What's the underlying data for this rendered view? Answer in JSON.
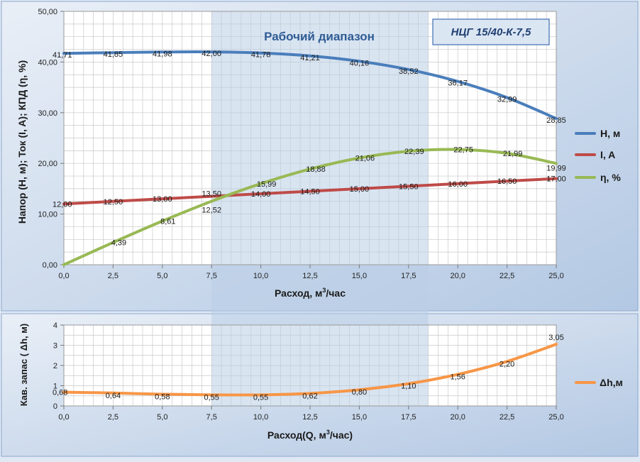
{
  "colors": {
    "head": "#4a7ebb",
    "current": "#be4b48",
    "efficiency": "#98b954",
    "npsh": "#f79646",
    "band": "#b9cde5",
    "plot_bg": "#ffffff",
    "grid": "#c8c8c8",
    "frame_bg": "#c6d6ea"
  },
  "chart_data": [
    {
      "type": "line",
      "title_box": "НЦГ 15/40-К-7,5",
      "band_label": "Рабочий диапазон",
      "band_range": [
        7.5,
        18.5
      ],
      "xlabel_prefix": "Расход, м",
      "xlabel_sup": "3",
      "xlabel_suffix": "/час",
      "ylabel": "Напор (H, м); Ток (I, A); КПД (η, %)",
      "xlim": [
        0,
        25
      ],
      "ylim": [
        0,
        50
      ],
      "x_ticks": [
        "0,0",
        "2,5",
        "5,0",
        "7,5",
        "10,0",
        "12,5",
        "15,0",
        "17,5",
        "20,0",
        "22,5",
        "25,0"
      ],
      "y_ticks": [
        "0,00",
        "10,00",
        "20,00",
        "30,00",
        "40,00",
        "50,00"
      ],
      "grid": true,
      "legend_position": "right",
      "x": [
        0,
        2.5,
        5,
        7.5,
        10,
        12.5,
        15,
        17.5,
        20,
        22.5,
        25
      ],
      "series": [
        {
          "name": "H,  м",
          "values": [
            41.71,
            41.85,
            41.98,
            42.0,
            41.78,
            41.21,
            40.16,
            38.52,
            36.17,
            32.99,
            28.85
          ],
          "labels": [
            "41,71",
            "41,85",
            "41,98",
            "42,00",
            "41,78",
            "41,21",
            "40,16",
            "38,52",
            "36,17",
            "32,99",
            "28,85"
          ]
        },
        {
          "name": "I, A",
          "values": [
            12.0,
            12.5,
            13.0,
            13.5,
            14.0,
            14.5,
            15.0,
            15.5,
            16.0,
            16.5,
            17.0
          ],
          "labels": [
            "12,00",
            "12,50",
            "13,00",
            "13,50",
            "14,00",
            "14,50",
            "15,00",
            "15,50",
            "16,00",
            "16,50",
            "17,00"
          ]
        },
        {
          "name": "η, %",
          "values": [
            0,
            4.39,
            8.61,
            12.52,
            15.99,
            18.88,
            21.06,
            22.39,
            22.75,
            21.99,
            19.99
          ],
          "labels": [
            "",
            "4,39",
            "8,61",
            "12,52",
            "15,99",
            "18,88",
            "21,06",
            "22,39",
            "22,75",
            "21,99",
            "19,99"
          ]
        }
      ]
    },
    {
      "type": "line",
      "xlabel_prefix": "Расход(Q, м",
      "xlabel_sup": "3",
      "xlabel_suffix": "/час)",
      "ylabel": "Кав. запас ( Δh, м)",
      "xlim": [
        0,
        25
      ],
      "ylim": [
        0,
        4
      ],
      "x_ticks": [
        "0,0",
        "2,5",
        "5,0",
        "7,5",
        "10,0",
        "12,5",
        "15,0",
        "17,5",
        "20,0",
        "22,5",
        "25,0"
      ],
      "y_ticks": [
        "0",
        "1",
        "2",
        "3",
        "4"
      ],
      "grid": true,
      "legend_position": "right",
      "x": [
        0,
        2.5,
        5,
        7.5,
        10,
        12.5,
        15,
        17.5,
        20,
        22.5,
        25
      ],
      "series": [
        {
          "name": "Δh,м",
          "values": [
            0.68,
            0.64,
            0.58,
            0.55,
            0.55,
            0.62,
            0.8,
            1.1,
            1.56,
            2.2,
            3.05
          ],
          "labels": [
            "0,68",
            "0,64",
            "0,58",
            "0,55",
            "0,55",
            "0,62",
            "0,80",
            "1,10",
            "1,56",
            "2,20",
            "3,05"
          ]
        }
      ]
    }
  ]
}
